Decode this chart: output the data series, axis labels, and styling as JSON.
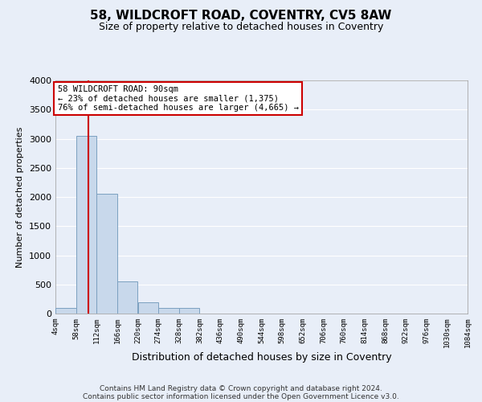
{
  "title_line1": "58, WILDCROFT ROAD, COVENTRY, CV5 8AW",
  "title_line2": "Size of property relative to detached houses in Coventry",
  "xlabel": "Distribution of detached houses by size in Coventry",
  "ylabel": "Number of detached properties",
  "footer_line1": "Contains HM Land Registry data © Crown copyright and database right 2024.",
  "footer_line2": "Contains public sector information licensed under the Open Government Licence v3.0.",
  "annotation_line1": "58 WILDCROFT ROAD: 90sqm",
  "annotation_line2": "← 23% of detached houses are smaller (1,375)",
  "annotation_line3": "76% of semi-detached houses are larger (4,665) →",
  "bin_edges": [
    4,
    58,
    112,
    166,
    220,
    274,
    328,
    382,
    436,
    490,
    544,
    598,
    652,
    706,
    760,
    814,
    868,
    922,
    976,
    1030,
    1084
  ],
  "bar_heights": [
    90,
    3050,
    2050,
    550,
    195,
    100,
    95,
    0,
    0,
    0,
    0,
    0,
    0,
    0,
    0,
    0,
    0,
    0,
    0,
    0
  ],
  "bar_color": "#c8d8eb",
  "bar_edge_color": "#7ca0c0",
  "vline_x": 90,
  "vline_color": "#cc0000",
  "ylim": [
    0,
    4000
  ],
  "xlim": [
    4,
    1084
  ],
  "tick_labels": [
    "4sqm",
    "58sqm",
    "112sqm",
    "166sqm",
    "220sqm",
    "274sqm",
    "328sqm",
    "382sqm",
    "436sqm",
    "490sqm",
    "544sqm",
    "598sqm",
    "652sqm",
    "706sqm",
    "760sqm",
    "814sqm",
    "868sqm",
    "922sqm",
    "976sqm",
    "1030sqm",
    "1084sqm"
  ],
  "tick_positions": [
    4,
    58,
    112,
    166,
    220,
    274,
    328,
    382,
    436,
    490,
    544,
    598,
    652,
    706,
    760,
    814,
    868,
    922,
    976,
    1030,
    1084
  ],
  "bg_color": "#e8eef8",
  "annotation_box_color": "#ffffff",
  "annotation_box_edge": "#cc0000",
  "grid_color": "#ffffff",
  "yticks": [
    0,
    500,
    1000,
    1500,
    2000,
    2500,
    3000,
    3500,
    4000
  ]
}
